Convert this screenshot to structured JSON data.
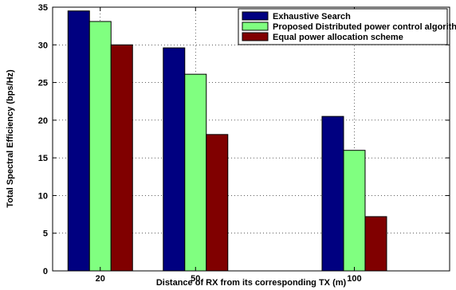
{
  "chart_data": {
    "type": "bar",
    "categories": [
      "20",
      "50",
      "100"
    ],
    "x_positions": [
      20,
      50,
      100
    ],
    "xlim": [
      5,
      130
    ],
    "ylim": [
      0,
      35
    ],
    "yticks": [
      0,
      5,
      10,
      15,
      20,
      25,
      30,
      35
    ],
    "xlabel": "Distance of RX from its corresponding TX (m)",
    "ylabel": "Total Spectral Efficiency (bps/Hz)",
    "grid": true,
    "legend_position": "top-right",
    "series": [
      {
        "name": "Exhaustive Search",
        "color": "#000080",
        "values": [
          34.5,
          29.6,
          20.5
        ]
      },
      {
        "name": "Proposed Distributed power control algorithm",
        "color": "#80ff80",
        "values": [
          33.1,
          26.1,
          16.0
        ]
      },
      {
        "name": "Equal power allocation scheme",
        "color": "#800000",
        "values": [
          30.0,
          18.1,
          7.2
        ]
      }
    ]
  }
}
